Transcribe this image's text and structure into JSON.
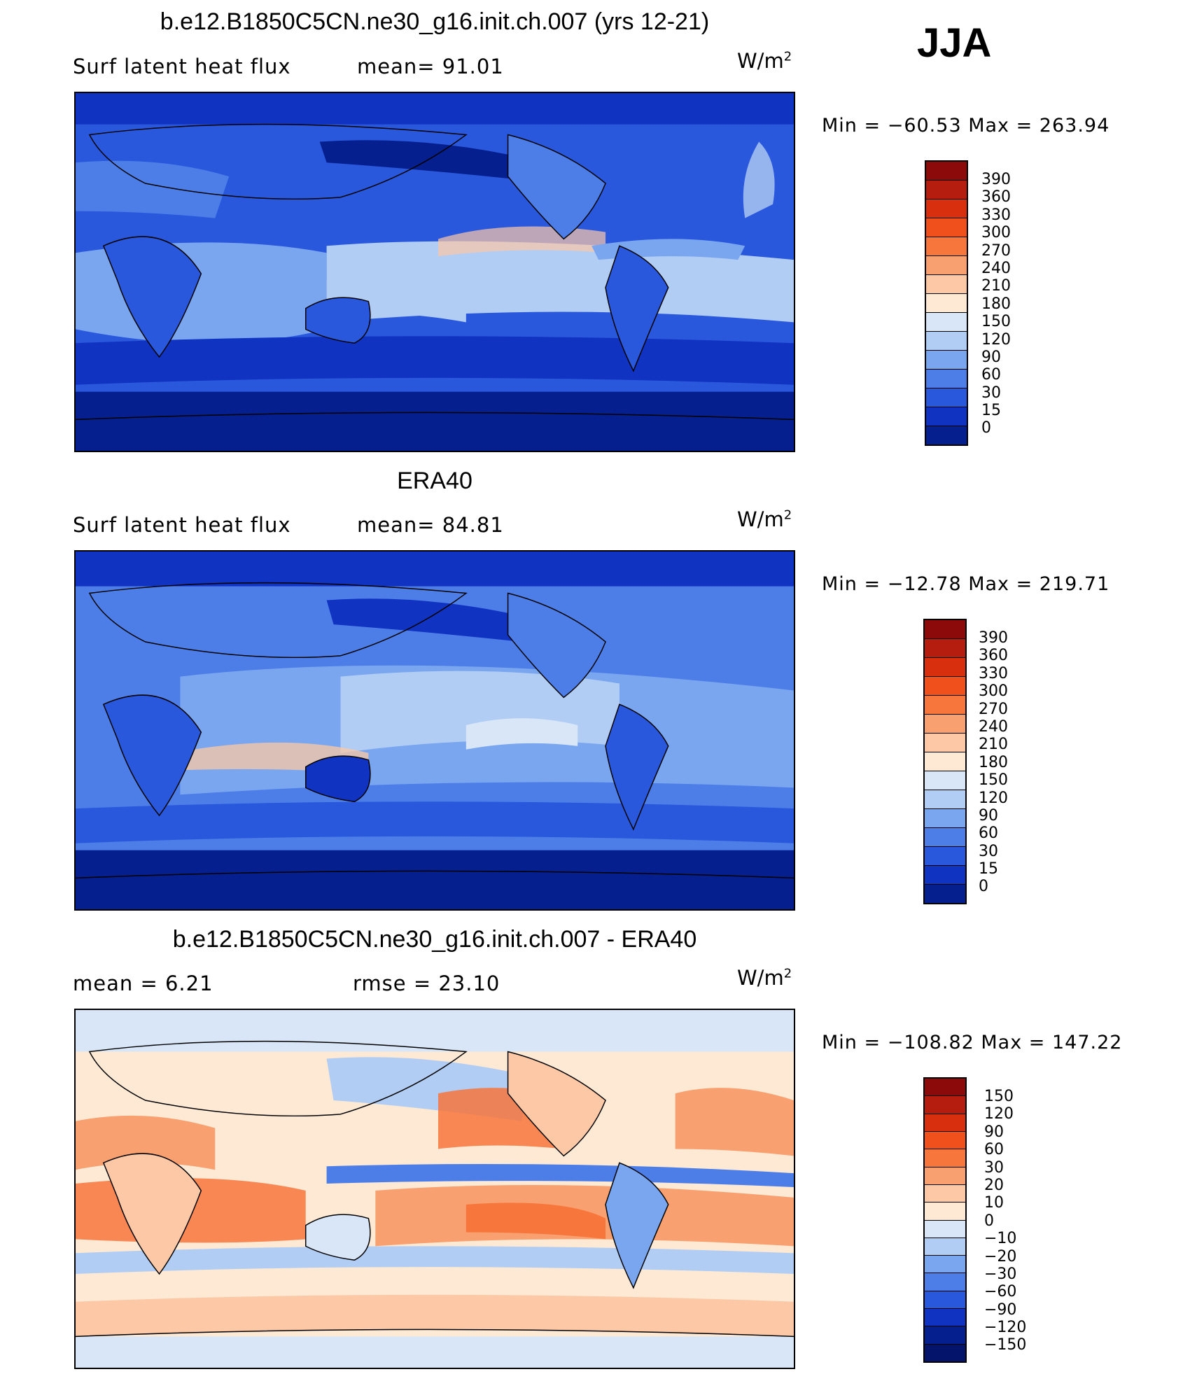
{
  "season": "JJA",
  "panels": [
    {
      "title": "b.e12.B1850C5CN.ne30_g16.init.ch.007 (yrs 12-21)",
      "left_label": "Surf  latent  heat  flux",
      "middle_label": "mean=   91.01",
      "units_base": "W/m",
      "units_exp": "2",
      "minmax": "Min  =  −60.53  Max  =  263.94",
      "colorbar_labels": [
        "390",
        "360",
        "330",
        "300",
        "270",
        "240",
        "210",
        "180",
        "150",
        "120",
        "90",
        "60",
        "30",
        "15",
        "0"
      ],
      "colorbar_colors": [
        "#8c0a0a",
        "#b51d0e",
        "#d8300f",
        "#f0501c",
        "#f7763c",
        "#f9a070",
        "#fcc8a6",
        "#fde9d4",
        "#d8e6f8",
        "#b1cdf4",
        "#7aa6ef",
        "#4d7ee8",
        "#2a58dc",
        "#1133c2",
        "#061f8e"
      ],
      "map_style": "model"
    },
    {
      "title": "ERA40",
      "left_label": "Surf  latent  heat  flux",
      "middle_label": "mean=   84.81",
      "units_base": "W/m",
      "units_exp": "2",
      "minmax": "Min  =  −12.78  Max  =  219.71",
      "colorbar_labels": [
        "390",
        "360",
        "330",
        "300",
        "270",
        "240",
        "210",
        "180",
        "150",
        "120",
        "90",
        "60",
        "30",
        "15",
        "0"
      ],
      "colorbar_colors": [
        "#8c0a0a",
        "#b51d0e",
        "#d8300f",
        "#f0501c",
        "#f7763c",
        "#f9a070",
        "#fcc8a6",
        "#fde9d4",
        "#d8e6f8",
        "#b1cdf4",
        "#7aa6ef",
        "#4d7ee8",
        "#2a58dc",
        "#1133c2",
        "#061f8e"
      ],
      "map_style": "obs"
    },
    {
      "title": "b.e12.B1850C5CN.ne30_g16.init.ch.007 - ERA40",
      "left_label": "mean  =     6.21",
      "middle_label": "rmse  =    23.10",
      "units_base": "W/m",
      "units_exp": "2",
      "minmax": "Min  =  −108.82  Max  =  147.22",
      "colorbar_labels": [
        "150",
        "120",
        "90",
        "60",
        "30",
        "20",
        "10",
        "0",
        "−10",
        "−20",
        "−30",
        "−60",
        "−90",
        "−120",
        "−150"
      ],
      "colorbar_colors": [
        "#8c0a0a",
        "#b51d0e",
        "#d8300f",
        "#f0501c",
        "#f7763c",
        "#f9a070",
        "#fcc8a6",
        "#fde9d4",
        "#d8e6f8",
        "#b1cdf4",
        "#7aa6ef",
        "#4d7ee8",
        "#2a58dc",
        "#1133c2",
        "#061f8e",
        "#03146a"
      ],
      "map_style": "diff"
    }
  ]
}
